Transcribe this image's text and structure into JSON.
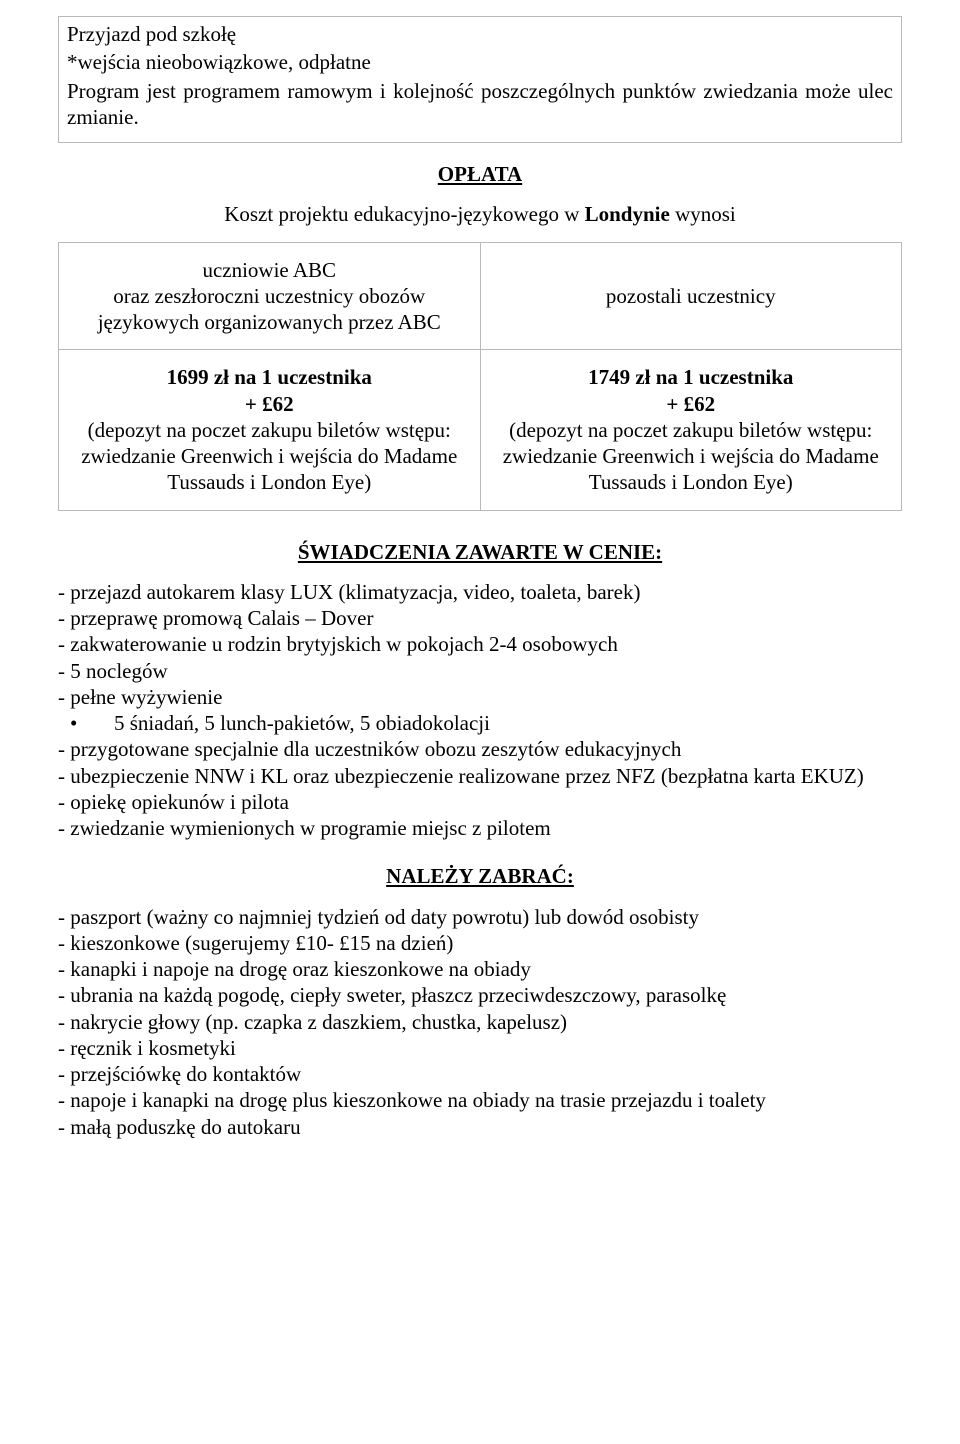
{
  "intro_box": {
    "line1": "Przyjazd pod szkołę",
    "line2": "*wejścia nieobowiązkowe, odpłatne",
    "line3": "Program jest programem ramowym i kolejność poszczególnych punktów zwiedzania może ulec zmianie."
  },
  "fee": {
    "title": "OPŁATA",
    "lead": "Koszt projektu edukacyjno-językowego w Londynie wynosi",
    "left_header_l1": "uczniowie ABC",
    "left_header_l2": "oraz zeszłoroczni uczestnicy obozów językowych organizowanych przez ABC",
    "right_header": "pozostali uczestnicy",
    "left_price": "1699 zł na 1 uczestnika",
    "right_price": "1749 zł na 1 uczestnika",
    "plus_line": "+ £62",
    "deposit_note": "(depozyt na poczet zakupu biletów wstępu: zwiedzanie Greenwich i wejścia do Madame Tussauds i London Eye)"
  },
  "included": {
    "title": "ŚWIADCZENIA ZAWARTE W CENIE:",
    "l1": "- przejazd autokarem klasy LUX (klimatyzacja, video, toaleta, barek)",
    "l2": "- przeprawę promową Calais – Dover",
    "l3": "- zakwaterowanie u rodzin brytyjskich w pokojach 2-4 osobowych",
    "l4": "- 5 noclegów",
    "l5": "- pełne wyżywienie",
    "l5a": "5 śniadań, 5 lunch-pakietów, 5 obiadokolacji",
    "l6": "- przygotowane specjalnie dla uczestników obozu zeszytów edukacyjnych",
    "l7": "- ubezpieczenie NNW i KL oraz ubezpieczenie realizowane przez NFZ (bezpłatna karta EKUZ)",
    "l8": "- opiekę opiekunów i pilota",
    "l9": "- zwiedzanie wymienionych w programie miejsc z pilotem"
  },
  "bring": {
    "title": "NALEŻY ZABRAĆ:",
    "l1": "- paszport (ważny co najmniej tydzień od daty powrotu) lub dowód osobisty",
    "l2": "- kieszonkowe (sugerujemy £10- £15 na dzień)",
    "l3": "- kanapki i napoje na drogę oraz kieszonkowe na obiady",
    "l4": "- ubrania na każdą pogodę, ciepły sweter, płaszcz przeciwdeszczowy, parasolkę",
    "l5": "- nakrycie głowy (np. czapka z daszkiem, chustka, kapelusz)",
    "l6": "- ręcznik i kosmetyki",
    "l7": "- przejściówkę do kontaktów",
    "l8": "- napoje i kanapki na drogę plus kieszonkowe na obiady na trasie przejazdu i toalety",
    "l9": "- małą poduszkę do autokaru"
  }
}
